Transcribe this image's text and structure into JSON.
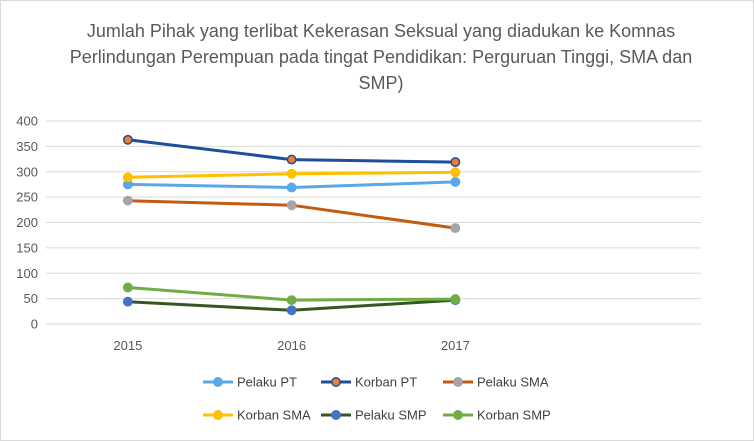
{
  "chart_data": {
    "type": "line",
    "title": "Jumlah Pihak yang terlibat Kekerasan Seksual yang diadukan ke Komnas Perlindungan Perempuan pada tingat Pendidikan: Perguruan Tinggi, SMA dan SMP)",
    "xlabel": "",
    "ylabel": "",
    "categories": [
      "2015",
      "2016",
      "2017"
    ],
    "ylim": [
      0,
      400
    ],
    "yticks": [
      0,
      50,
      100,
      150,
      200,
      250,
      300,
      350,
      400
    ],
    "grid": true,
    "legend_position": "bottom",
    "series": [
      {
        "name": "Pelaku PT",
        "values": [
          275,
          269,
          280
        ],
        "color": "#5aa8e6",
        "marker_fill": "#5aa8e6",
        "marker_edge": "#5aa8e6"
      },
      {
        "name": "Korban PT",
        "values": [
          363,
          324,
          319
        ],
        "color": "#1f4e9b",
        "marker_fill": "#ed7d31",
        "marker_edge": "#1f4e9b"
      },
      {
        "name": "Pelaku SMA",
        "values": [
          243,
          234,
          189
        ],
        "color": "#c55a11",
        "marker_fill": "#a5a5a5",
        "marker_edge": "#a5a5a5"
      },
      {
        "name": "Korban SMA",
        "values": [
          289,
          296,
          299
        ],
        "color": "#ffc000",
        "marker_fill": "#ffc000",
        "marker_edge": "#ffc000"
      },
      {
        "name": "Pelaku SMP",
        "values": [
          44,
          27,
          47
        ],
        "color": "#375623",
        "marker_fill": "#4472c4",
        "marker_edge": "#4472c4"
      },
      {
        "name": "Korban SMP",
        "values": [
          72,
          47,
          49
        ],
        "color": "#70ad47",
        "marker_fill": "#70ad47",
        "marker_edge": "#70ad47"
      }
    ]
  }
}
